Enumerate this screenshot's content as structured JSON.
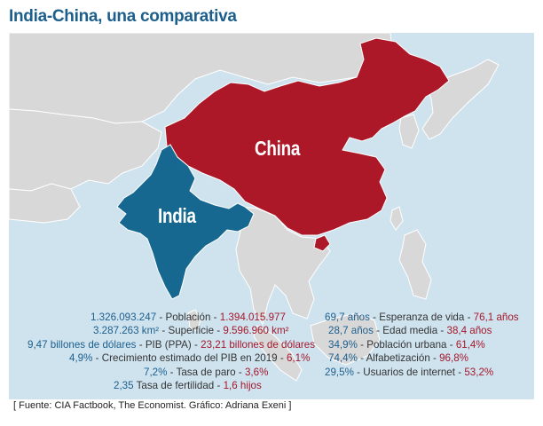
{
  "title": "India-China, una comparativa",
  "map": {
    "labels": {
      "china": "China",
      "india": "India"
    },
    "colors": {
      "india": "#166891",
      "china": "#ad1829",
      "land": "#d8d8d8",
      "sea": "#cfe3ef"
    }
  },
  "stats_left": [
    {
      "india": "1.326.093.247",
      "label": "Población",
      "china": "1.394.015.977"
    },
    {
      "india": "3.287.263 km²",
      "label": "Superficie",
      "china": "9.596.960 km²"
    },
    {
      "india": "9,47 billones de dólares",
      "label": "PIB (PPA)",
      "china": "23,21 billones de dólares"
    },
    {
      "india": "4,9%",
      "label": "Crecimiento estimado del PIB en 2019",
      "china": "6,1%"
    },
    {
      "india": "7,2%",
      "label": "Tasa de paro",
      "china": "3,6%"
    },
    {
      "india": "2,35",
      "label": "Tasa de fertilidad",
      "china": "1,6 hijos"
    }
  ],
  "stats_right": [
    {
      "india": "69,7 años",
      "label": "Esperanza de vida",
      "china": "76,1 años"
    },
    {
      "india": "28,7 años",
      "label": "Edad media",
      "china": "38,4 años"
    },
    {
      "india": "34,9%",
      "label": "Población urbana",
      "china": "61,4%"
    },
    {
      "india": "74,4%",
      "label": "Alfabetización",
      "china": "96,8%"
    },
    {
      "india": "29,5%",
      "label": "Usuarios de internet",
      "china": "53,2%"
    }
  ],
  "separator": "-",
  "source": "[ Fuente: CIA Factbook, The Economist. Gráfico: Adriana Exeni ]"
}
